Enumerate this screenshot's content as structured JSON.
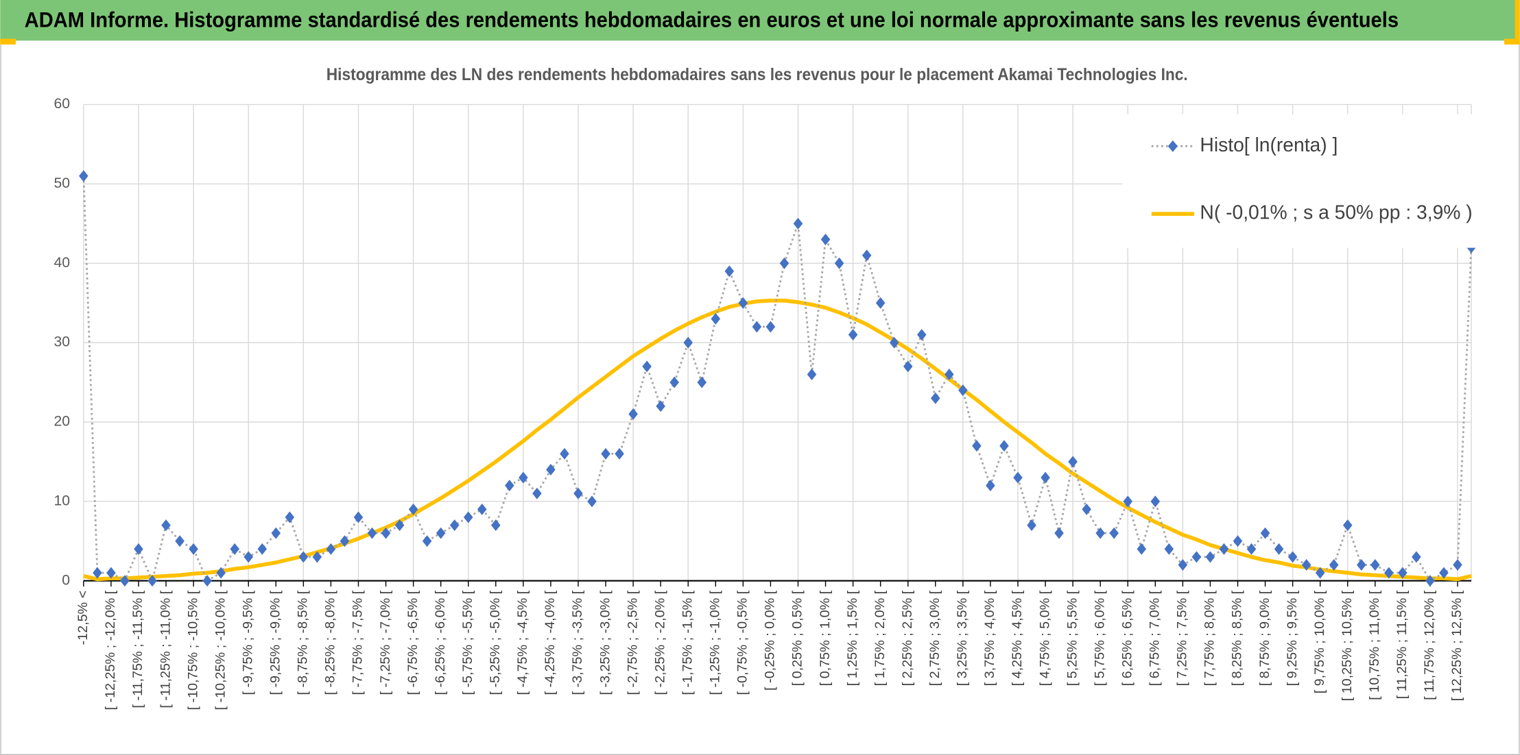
{
  "banner": "ADAM Informe. Histogramme standardisé des rendements hebdomadaires en euros et une loi normale approximante sans les revenus éventuels",
  "chart_data": {
    "type": "line",
    "title": "Histogramme des LN des rendements hebdomadaires sans les revenus pour le placement Akamai Technologies Inc.",
    "categories": [
      "-12,5% <",
      null,
      "[ -12,25% ; -12,0% [",
      null,
      "[ -11,75% ; -11,5% [",
      null,
      "[ -11,25% ; -11,0% [",
      null,
      "[ -10,75% ; -10,5% [",
      null,
      "[ -10,25% ; -10,0% [",
      null,
      "[ -9,75% ; -9,5% [",
      null,
      "[ -9,25% ; -9,0% [",
      null,
      "[ -8,75% ; -8,5% [",
      null,
      "[ -8,25% ; -8,0% [",
      null,
      "[ -7,75% ; -7,5% [",
      null,
      "[ -7,25% ; -7,0% [",
      null,
      "[ -6,75% ; -6,5% [",
      null,
      "[ -6,25% ; -6,0% [",
      null,
      "[ -5,75% ; -5,5% [",
      null,
      "[ -5,25% ; -5,0% [",
      null,
      "[ -4,75% ; -4,5% [",
      null,
      "[ -4,25% ; -4,0% [",
      null,
      "[ -3,75% ; -3,5% [",
      null,
      "[ -3,25% ; -3,0% [",
      null,
      "[ -2,75% ; -2,5% [",
      null,
      "[ -2,25% ; -2,0% [",
      null,
      "[ -1,75% ; -1,5% [",
      null,
      "[ -1,25% ; -1,0% [",
      null,
      "[ -0,75% ; -0,5% [",
      null,
      "[ -0,25% ; 0,0% [",
      null,
      "[ 0,25% ; 0,5% [",
      null,
      "[ 0,75% ; 1,0% [",
      null,
      "[ 1,25% ; 1,5% [",
      null,
      "[ 1,75% ; 2,0% [",
      null,
      "[ 2,25% ; 2,5% [",
      null,
      "[ 2,75% ; 3,0% [",
      null,
      "[ 3,25% ; 3,5% [",
      null,
      "[ 3,75% ; 4,0% [",
      null,
      "[ 4,25% ; 4,5% [",
      null,
      "[ 4,75% ; 5,0% [",
      null,
      "[ 5,25% ; 5,5% [",
      null,
      "[ 5,75% ; 6,0% [",
      null,
      "[ 6,25% ; 6,5% [",
      null,
      "[ 6,75% ; 7,0% [",
      null,
      "[ 7,25% ; 7,5% [",
      null,
      "[ 7,75% ; 8,0% [",
      null,
      "[ 8,25% ; 8,5% [",
      null,
      "[ 8,75% ; 9,0% [",
      null,
      "[ 9,25% ; 9,5% [",
      null,
      "[ 9,75% ; 10,0% [",
      null,
      "[ 10,25% ; 10,5% [",
      null,
      "[ 10,75% ; 11,0% [",
      null,
      "[ 11,25% ; 11,5% [",
      null,
      "[ 11,75% ; 12,0% [",
      null,
      "[ 12,25% ; 12,5% [",
      null
    ],
    "series": [
      {
        "name": "Histo[ ln(renta) ]",
        "color": "#4472c4",
        "line_color": "#a6a6a6",
        "line_style": "dotted",
        "markers": true,
        "values": [
          51,
          1,
          1,
          0,
          4,
          0,
          7,
          5,
          4,
          0,
          1,
          4,
          3,
          4,
          6,
          8,
          3,
          3,
          4,
          5,
          8,
          6,
          6,
          7,
          9,
          5,
          6,
          7,
          8,
          9,
          7,
          12,
          13,
          11,
          14,
          16,
          11,
          10,
          16,
          16,
          21,
          27,
          22,
          25,
          30,
          25,
          33,
          39,
          35,
          32,
          32,
          40,
          45,
          26,
          43,
          40,
          31,
          41,
          35,
          30,
          27,
          31,
          23,
          26,
          24,
          17,
          12,
          17,
          13,
          7,
          13,
          6,
          15,
          9,
          6,
          6,
          10,
          4,
          10,
          4,
          2,
          3,
          3,
          4,
          5,
          4,
          6,
          4,
          3,
          2,
          1,
          2,
          7,
          2,
          2,
          1,
          1,
          3,
          0,
          1,
          2,
          42
        ]
      },
      {
        "name": "N( -0,01% ; s a 50% pp : 3,9% )",
        "color": "#ffc000",
        "line_style": "solid",
        "markers": false,
        "values": [
          0.6,
          0.2,
          0.3,
          0.3,
          0.4,
          0.5,
          0.6,
          0.7,
          0.9,
          1.0,
          1.2,
          1.5,
          1.7,
          2.0,
          2.3,
          2.7,
          3.1,
          3.6,
          4.1,
          4.7,
          5.3,
          6.0,
          6.7,
          7.5,
          8.4,
          9.4,
          10.4,
          11.5,
          12.6,
          13.8,
          15.0,
          16.3,
          17.6,
          19.0,
          20.3,
          21.7,
          23.1,
          24.4,
          25.7,
          27.0,
          28.3,
          29.4,
          30.5,
          31.5,
          32.4,
          33.2,
          33.9,
          34.5,
          34.9,
          35.2,
          35.3,
          35.3,
          35.1,
          34.8,
          34.4,
          33.8,
          33.1,
          32.3,
          31.3,
          30.3,
          29.2,
          28.0,
          26.7,
          25.4,
          24.1,
          22.8,
          21.4,
          20.0,
          18.7,
          17.4,
          16.0,
          14.8,
          13.5,
          12.4,
          11.3,
          10.2,
          9.2,
          8.3,
          7.4,
          6.6,
          5.8,
          5.2,
          4.5,
          4.0,
          3.5,
          3.0,
          2.6,
          2.3,
          1.9,
          1.7,
          1.4,
          1.2,
          1.0,
          0.8,
          0.7,
          0.6,
          0.5,
          0.4,
          0.3,
          0.3,
          0.2,
          0.6
        ]
      }
    ],
    "ylim": [
      0,
      60
    ],
    "yticks": [
      0,
      10,
      20,
      30,
      40,
      50,
      60
    ],
    "grid": true,
    "legend": "top-right"
  }
}
